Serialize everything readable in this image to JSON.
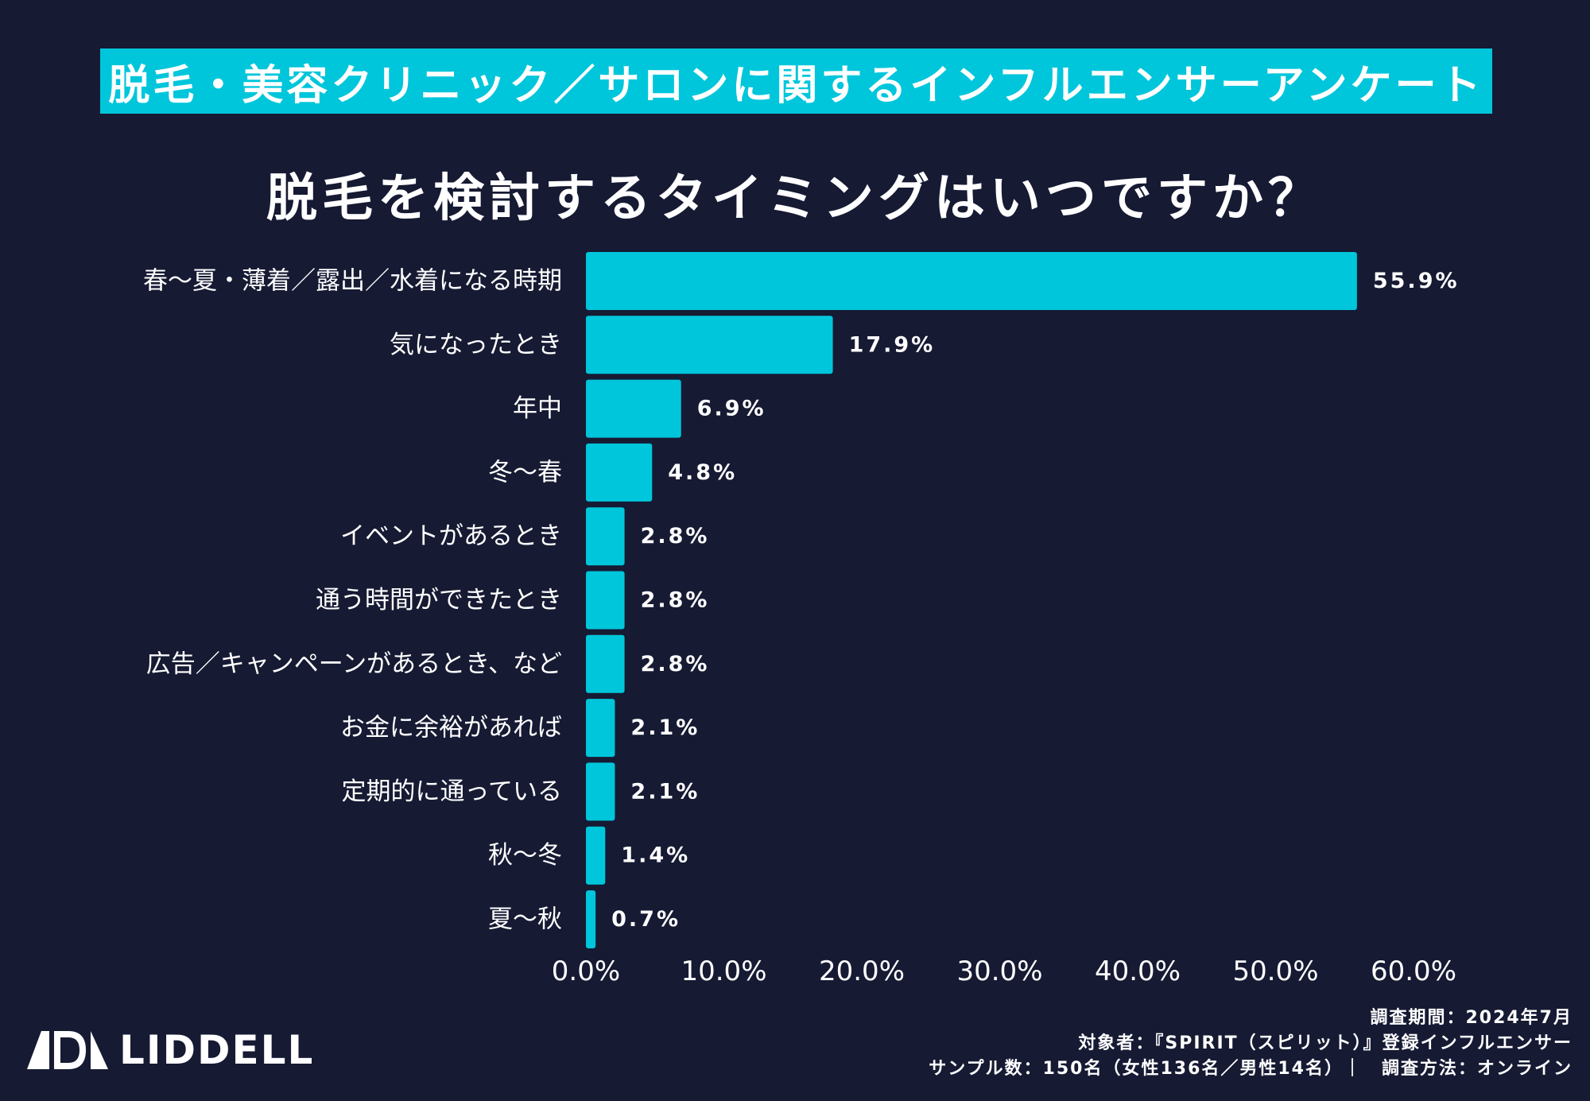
{
  "banner_title": "脱毛・美容クリニック／サロンに関するインフルエンサーアンケート",
  "chart_data": {
    "type": "bar",
    "orientation": "horizontal",
    "title": "脱毛を検討するタイミングはいつですか？",
    "categories": [
      "春〜夏・薄着／露出／水着になる時期",
      "気になったとき",
      "年中",
      "冬〜春",
      "イベントがあるとき",
      "通う時間ができたとき",
      "広告／キャンペーンがあるとき、など",
      "お金に余裕があれば",
      "定期的に通っている",
      "秋〜冬",
      "夏〜秋"
    ],
    "values": [
      55.9,
      17.9,
      6.9,
      4.8,
      2.8,
      2.8,
      2.8,
      2.1,
      2.1,
      1.4,
      0.7
    ],
    "value_labels": [
      "55.9%",
      "17.9%",
      "6.9%",
      "4.8%",
      "2.8%",
      "2.8%",
      "2.8%",
      "2.1%",
      "2.1%",
      "1.4%",
      "0.7%"
    ],
    "xlim": [
      0,
      60
    ],
    "ticks": [
      0,
      10,
      20,
      30,
      40,
      50,
      60
    ],
    "tick_labels": [
      "0.0%",
      "10.0%",
      "20.0%",
      "30.0%",
      "40.0%",
      "50.0%",
      "60.0%"
    ],
    "xlabel": "",
    "ylabel": "",
    "grid": false,
    "bar_color": "#00c6db"
  },
  "footer": {
    "brand": "LIDDELL",
    "notes": [
      "調査期間：2024年7月",
      "対象者：『SPIRIT（スピリット）』登録インフルエンサー",
      "サンプル数：150名（女性136名／男性14名）｜　調査方法：オンライン"
    ]
  },
  "colors": {
    "background": "#161a33",
    "accent": "#00c6db",
    "text": "#ffffff"
  }
}
